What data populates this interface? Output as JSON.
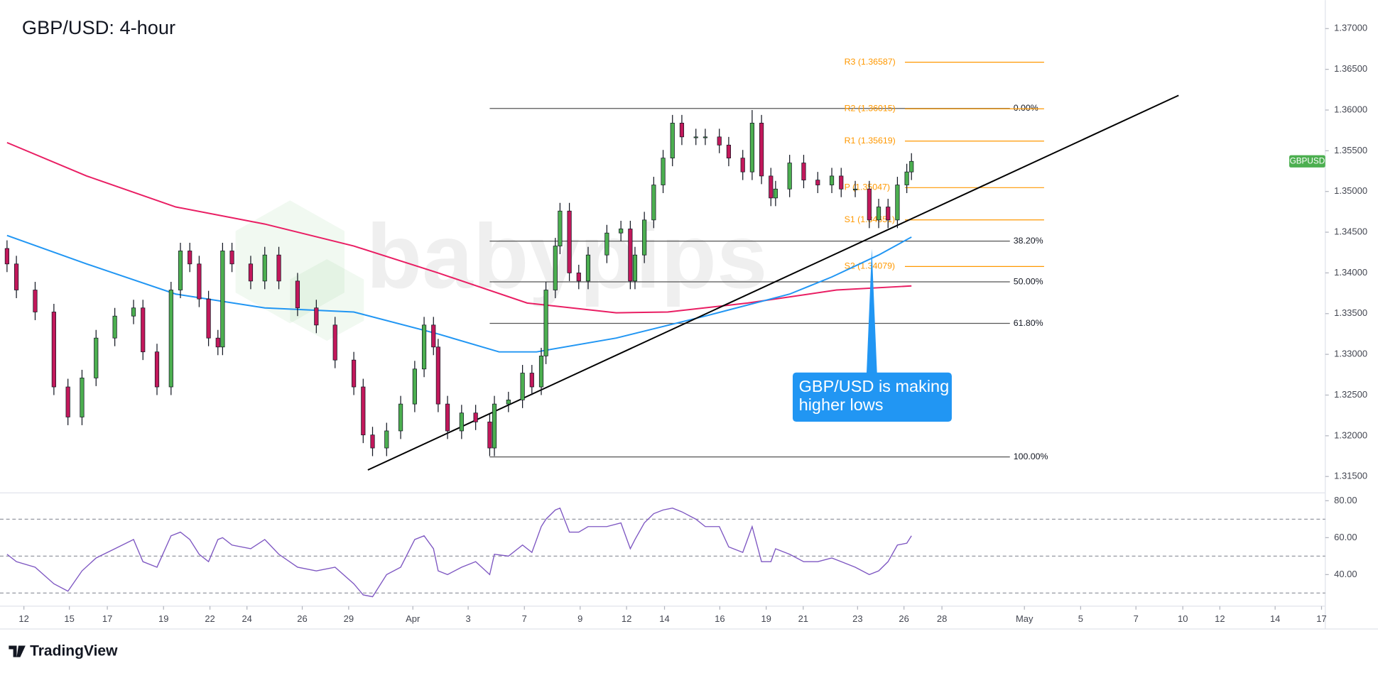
{
  "chart_data": [
    {
      "type": "candlestick",
      "title": "GBP/USD: 4-hour",
      "x": [
        0,
        2,
        6,
        10,
        13,
        16,
        19,
        23,
        27,
        29,
        32,
        35,
        37,
        39,
        41,
        43,
        45,
        46,
        48,
        52,
        55,
        58,
        62,
        66,
        70,
        74,
        76,
        78,
        81,
        84,
        87,
        89,
        91,
        92,
        94,
        97,
        100,
        103,
        104,
        107,
        110,
        112,
        114,
        115,
        117,
        118,
        120,
        122,
        124,
        128,
        131,
        133,
        134,
        136,
        138,
        140,
        142,
        144,
        147,
        149,
        152,
        154,
        157,
        159,
        161,
        163,
        164,
        167,
        170,
        173,
        176,
        178,
        181,
        184,
        186,
        188,
        190,
        192,
        193
      ],
      "open": [
        1.343,
        1.3411,
        1.3379,
        1.3352,
        1.326,
        1.3223,
        1.3271,
        1.332,
        1.3347,
        1.3357,
        1.3303,
        1.326,
        1.3379,
        1.3427,
        1.3411,
        1.3368,
        1.332,
        1.3309,
        1.3427,
        1.3411,
        1.339,
        1.3422,
        1.339,
        1.3357,
        1.3336,
        1.3293,
        1.326,
        1.3201,
        1.3185,
        1.3206,
        1.3239,
        1.3282,
        1.3336,
        1.3309,
        1.3239,
        1.3206,
        1.3228,
        1.3217,
        1.3185,
        1.3239,
        1.3244,
        1.3277,
        1.326,
        1.3298,
        1.3379,
        1.3433,
        1.3476,
        1.34,
        1.339,
        1.3422,
        1.3449,
        1.3454,
        1.339,
        1.3422,
        1.3465,
        1.3508,
        1.3541,
        1.3584,
        1.3567,
        1.3567,
        1.3567,
        1.3557,
        1.3541,
        1.3524,
        1.3584,
        1.3519,
        1.3492,
        1.3503,
        1.3535,
        1.3514,
        1.3508,
        1.3519,
        1.3503,
        1.3503,
        1.3465,
        1.3481,
        1.3465,
        1.3508,
        1.3524
      ],
      "high": [
        1.344,
        1.3421,
        1.3389,
        1.3362,
        1.327,
        1.3281,
        1.333,
        1.3357,
        1.3367,
        1.3367,
        1.3313,
        1.3389,
        1.3437,
        1.3437,
        1.3421,
        1.3378,
        1.333,
        1.3437,
        1.3437,
        1.3421,
        1.3432,
        1.3432,
        1.34,
        1.3367,
        1.3346,
        1.3303,
        1.327,
        1.3211,
        1.3216,
        1.3249,
        1.3292,
        1.3346,
        1.3346,
        1.3319,
        1.3249,
        1.3238,
        1.3238,
        1.3227,
        1.3249,
        1.3254,
        1.3287,
        1.3287,
        1.3308,
        1.3389,
        1.3443,
        1.3486,
        1.3486,
        1.341,
        1.3432,
        1.3459,
        1.3464,
        1.3464,
        1.3432,
        1.3475,
        1.3518,
        1.3551,
        1.3594,
        1.3594,
        1.3577,
        1.3577,
        1.3577,
        1.3567,
        1.3551,
        1.36,
        1.3594,
        1.3529,
        1.3513,
        1.3545,
        1.3545,
        1.3524,
        1.3529,
        1.3529,
        1.3513,
        1.3513,
        1.3491,
        1.3491,
        1.3518,
        1.3534,
        1.3547
      ],
      "low": [
        1.3401,
        1.3369,
        1.3342,
        1.325,
        1.3213,
        1.3213,
        1.3261,
        1.331,
        1.3337,
        1.3293,
        1.325,
        1.325,
        1.3369,
        1.3401,
        1.3358,
        1.331,
        1.3299,
        1.3299,
        1.3401,
        1.338,
        1.338,
        1.338,
        1.3347,
        1.3326,
        1.3283,
        1.325,
        1.3191,
        1.3175,
        1.3175,
        1.3196,
        1.3229,
        1.3272,
        1.3299,
        1.3229,
        1.3196,
        1.3196,
        1.3207,
        1.3175,
        1.3175,
        1.3229,
        1.3234,
        1.325,
        1.325,
        1.3288,
        1.3369,
        1.3423,
        1.339,
        1.338,
        1.338,
        1.3412,
        1.3439,
        1.338,
        1.338,
        1.3412,
        1.3455,
        1.3498,
        1.3531,
        1.3557,
        1.3557,
        1.3557,
        1.3547,
        1.3531,
        1.3514,
        1.3514,
        1.3509,
        1.3482,
        1.3482,
        1.3493,
        1.3504,
        1.3498,
        1.3498,
        1.3493,
        1.3493,
        1.3455,
        1.3455,
        1.3455,
        1.3455,
        1.3498,
        1.3514
      ],
      "close": [
        1.3411,
        1.3379,
        1.3352,
        1.326,
        1.3223,
        1.3271,
        1.332,
        1.3347,
        1.3357,
        1.3303,
        1.326,
        1.3379,
        1.3427,
        1.3411,
        1.3368,
        1.332,
        1.3309,
        1.3427,
        1.3411,
        1.339,
        1.3422,
        1.339,
        1.3357,
        1.3336,
        1.3293,
        1.326,
        1.3201,
        1.3185,
        1.3206,
        1.3239,
        1.3282,
        1.3336,
        1.3309,
        1.3239,
        1.3206,
        1.3228,
        1.3217,
        1.3185,
        1.3239,
        1.3244,
        1.3277,
        1.326,
        1.3298,
        1.3379,
        1.3433,
        1.3476,
        1.34,
        1.339,
        1.3422,
        1.3449,
        1.3454,
        1.339,
        1.3422,
        1.3465,
        1.3508,
        1.3541,
        1.3584,
        1.3567,
        1.3567,
        1.3567,
        1.3557,
        1.3541,
        1.3524,
        1.3584,
        1.3519,
        1.3492,
        1.3503,
        1.3535,
        1.3514,
        1.3508,
        1.3519,
        1.3503,
        1.3503,
        1.3465,
        1.3481,
        1.3465,
        1.3508,
        1.3524,
        1.3537
      ],
      "up_color": "#4caf50",
      "down_color": "#c2185b",
      "xlim": [
        -1.5,
        281.3
      ],
      "ylim": [
        1.3131,
        1.3735
      ],
      "yticks": [
        {
          "value": 1.315,
          "label": "1.31500"
        },
        {
          "value": 1.32,
          "label": "1.32000"
        },
        {
          "value": 1.325,
          "label": "1.32500"
        },
        {
          "value": 1.33,
          "label": "1.33000"
        },
        {
          "value": 1.335,
          "label": "1.33500"
        },
        {
          "value": 1.34,
          "label": "1.34000"
        },
        {
          "value": 1.345,
          "label": "1.34500"
        },
        {
          "value": 1.35,
          "label": "1.35000"
        },
        {
          "value": 1.355,
          "label": "1.35500"
        },
        {
          "value": 1.36,
          "label": "1.36000"
        },
        {
          "value": 1.365,
          "label": "1.36500"
        },
        {
          "value": 1.37,
          "label": "1.37000"
        }
      ],
      "xticks": [
        {
          "value": 3.6,
          "label": "12"
        },
        {
          "value": 13.3,
          "label": "15"
        },
        {
          "value": 21.4,
          "label": "17"
        },
        {
          "value": 33.4,
          "label": "19"
        },
        {
          "value": 43.3,
          "label": "22"
        },
        {
          "value": 51.2,
          "label": "24"
        },
        {
          "value": 63,
          "label": "26"
        },
        {
          "value": 72.9,
          "label": "29"
        },
        {
          "value": 86.6,
          "label": "Apr"
        },
        {
          "value": 98.4,
          "label": "3"
        },
        {
          "value": 110.4,
          "label": "7"
        },
        {
          "value": 122.3,
          "label": "9"
        },
        {
          "value": 132.2,
          "label": "12"
        },
        {
          "value": 140.3,
          "label": "14"
        },
        {
          "value": 152.1,
          "label": "16"
        },
        {
          "value": 162,
          "label": "19"
        },
        {
          "value": 169.9,
          "label": "21"
        },
        {
          "value": 181.5,
          "label": "23"
        },
        {
          "value": 191.4,
          "label": "26"
        },
        {
          "value": 199.5,
          "label": "28"
        },
        {
          "value": 217.1,
          "label": "May"
        },
        {
          "value": 229.1,
          "label": "5"
        },
        {
          "value": 240.9,
          "label": "7"
        },
        {
          "value": 250.9,
          "label": "10"
        },
        {
          "value": 258.8,
          "label": "12"
        },
        {
          "value": 270.6,
          "label": "14"
        },
        {
          "value": 280.5,
          "label": "17"
        }
      ],
      "lines": [
        {
          "color": "#e91e63",
          "x": [
            0,
            17,
            36,
            55,
            74,
            92,
            111,
            130,
            141,
            158,
            177,
            193
          ],
          "values": [
            1.356,
            1.3519,
            1.3481,
            1.346,
            1.3433,
            1.34,
            1.3363,
            1.3351,
            1.3352,
            1.3363,
            1.3379,
            1.3384
          ]
        },
        {
          "color": "#2196f3",
          "x": [
            0,
            17,
            36,
            55,
            74,
            92,
            105,
            113,
            130,
            149,
            167,
            176,
            186,
            193
          ],
          "values": [
            1.3446,
            1.3411,
            1.3374,
            1.3357,
            1.3352,
            1.3325,
            1.3303,
            1.3303,
            1.332,
            1.3347,
            1.3374,
            1.3395,
            1.3422,
            1.3444
          ]
        }
      ],
      "trendline": {
        "color": "#000000",
        "x": [
          77,
          250
        ],
        "values": [
          1.3158,
          1.3618
        ]
      },
      "fib": {
        "x": [
          103,
          214
        ],
        "color": "#555555",
        "levels": [
          {
            "label": "0.00%",
            "price": 1.3602
          },
          {
            "label": "38.20%",
            "price": 1.3439
          },
          {
            "label": "50.00%",
            "price": 1.3389
          },
          {
            "label": "61.80%",
            "price": 1.3338
          },
          {
            "label": "100.00%",
            "price": 1.3174
          }
        ]
      },
      "pivots": {
        "x": [
          191.6,
          221.3
        ],
        "color": "#ff9800",
        "levels": [
          {
            "label": "R3 (1.36587)",
            "value": 1.36587
          },
          {
            "label": "R2 (1.36015)",
            "value": 1.36015
          },
          {
            "label": "R1 (1.35619)",
            "value": 1.35619
          },
          {
            "label": "P (1.35047)",
            "value": 1.35047
          },
          {
            "label": "S1 (1.34651)",
            "value": 1.34651
          },
          {
            "label": "S2 (1.34079)",
            "value": 1.34079
          }
        ]
      },
      "badge": {
        "label": "GBPUSD",
        "value": 1.3537,
        "color": "#4caf50"
      },
      "annotation": {
        "lines": [
          "GBP/USD is making",
          "higher lows"
        ],
        "color": "#2196f3"
      }
    },
    {
      "type": "line",
      "color": "#7e57c2",
      "x": [
        0,
        2,
        6,
        10,
        13,
        16,
        19,
        23,
        27,
        29,
        32,
        35,
        37,
        39,
        41,
        43,
        45,
        46,
        48,
        52,
        55,
        58,
        62,
        66,
        70,
        74,
        76,
        78,
        81,
        84,
        87,
        89,
        91,
        92,
        94,
        97,
        100,
        103,
        104,
        107,
        110,
        112,
        114,
        115,
        117,
        118,
        120,
        122,
        124,
        128,
        131,
        133,
        134,
        136,
        138,
        140,
        142,
        144,
        147,
        149,
        152,
        154,
        157,
        159,
        161,
        163,
        164,
        167,
        170,
        173,
        176,
        178,
        181,
        184,
        186,
        188,
        190,
        192,
        193
      ],
      "values": [
        51,
        47,
        44,
        35,
        31,
        42,
        49,
        54,
        59,
        47,
        44,
        61,
        63,
        59,
        51,
        47,
        59,
        60,
        56,
        54,
        59,
        51,
        44,
        42,
        44,
        35,
        29,
        28,
        40,
        44,
        59,
        61,
        54,
        42,
        40,
        44,
        47,
        40,
        51,
        50,
        56,
        52,
        66,
        70,
        75,
        76,
        63,
        63,
        66,
        66,
        68,
        54,
        59,
        68,
        73,
        75,
        76,
        74,
        70,
        66,
        66,
        55,
        52,
        66,
        47,
        47,
        54,
        51,
        47,
        47,
        49,
        47,
        44,
        40,
        42,
        47,
        56,
        57,
        61
      ],
      "xlim": [
        -1.5,
        281.3
      ],
      "ylim": [
        22.9,
        83.8
      ],
      "yticks": [
        {
          "value": 40,
          "label": "40.00"
        },
        {
          "value": 60,
          "label": "60.00"
        },
        {
          "value": 80,
          "label": "80.00"
        }
      ],
      "levels": [
        70,
        50,
        30
      ]
    }
  ],
  "watermark": "babypips",
  "brand": "TradingView"
}
